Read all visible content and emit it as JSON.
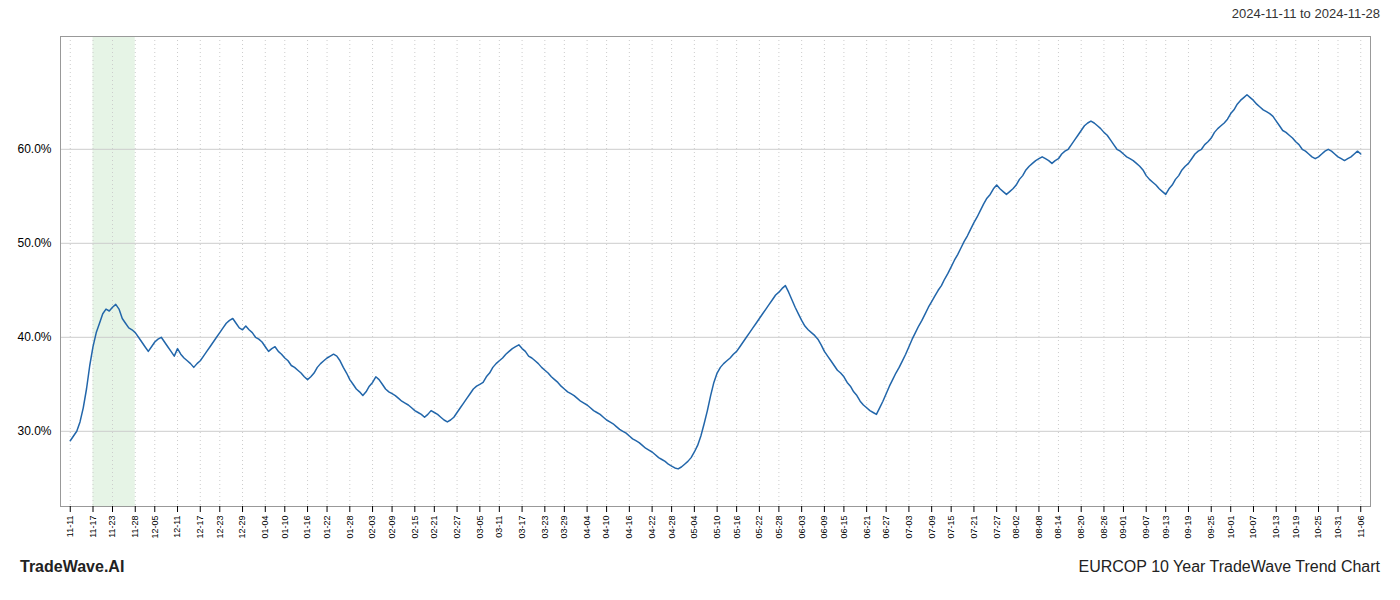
{
  "chart_data": {
    "type": "line",
    "title": "2024-11-11 to 2024-11-28",
    "footer": {
      "left": "TradeWave.AI",
      "right": "EURCOP 10 Year TradeWave Trend Chart"
    },
    "color": "#2266aa",
    "grid": true,
    "ylim": [
      0.22,
      0.72
    ],
    "yticks": [
      {
        "value": 0.3,
        "label": "30.0%"
      },
      {
        "value": 0.4,
        "label": "40.0%"
      },
      {
        "value": 0.5,
        "label": "50.0%"
      },
      {
        "value": 0.6,
        "label": "60.0%"
      }
    ],
    "shade": {
      "from": "11-17",
      "to": "11-28",
      "color": "#d6ecd6"
    },
    "categories": [
      "11-11",
      null,
      null,
      null,
      null,
      null,
      null,
      "11-17",
      null,
      null,
      null,
      null,
      null,
      "11-23",
      null,
      null,
      null,
      null,
      null,
      null,
      "11-28",
      null,
      null,
      null,
      null,
      null,
      "12-05",
      null,
      null,
      null,
      null,
      null,
      null,
      "12-11",
      null,
      null,
      null,
      null,
      null,
      null,
      "12-17",
      null,
      null,
      null,
      null,
      null,
      "12-23",
      null,
      null,
      null,
      null,
      null,
      null,
      "12-29",
      null,
      null,
      null,
      null,
      null,
      null,
      "01-04",
      null,
      null,
      null,
      null,
      null,
      "01-10",
      null,
      null,
      null,
      null,
      null,
      null,
      "01-16",
      null,
      null,
      null,
      null,
      null,
      "01-22",
      null,
      null,
      null,
      null,
      null,
      null,
      "01-28",
      null,
      null,
      null,
      null,
      null,
      null,
      "02-03",
      null,
      null,
      null,
      null,
      null,
      "02-09",
      null,
      null,
      null,
      null,
      null,
      null,
      "02-15",
      null,
      null,
      null,
      null,
      null,
      "02-21",
      null,
      null,
      null,
      null,
      null,
      null,
      "02-27",
      null,
      null,
      null,
      null,
      null,
      null,
      "03-05",
      null,
      null,
      null,
      null,
      null,
      "03-11",
      null,
      null,
      null,
      null,
      null,
      null,
      "03-17",
      null,
      null,
      null,
      null,
      null,
      null,
      "03-23",
      null,
      null,
      null,
      null,
      null,
      "03-29",
      null,
      null,
      null,
      null,
      null,
      null,
      "04-04",
      null,
      null,
      null,
      null,
      null,
      "04-10",
      null,
      null,
      null,
      null,
      null,
      null,
      "04-16",
      null,
      null,
      null,
      null,
      null,
      null,
      "04-22",
      null,
      null,
      null,
      null,
      null,
      "04-28",
      null,
      null,
      null,
      null,
      null,
      null,
      "05-04",
      null,
      null,
      null,
      null,
      null,
      null,
      "05-10",
      null,
      null,
      null,
      null,
      null,
      "05-16",
      null,
      null,
      null,
      null,
      null,
      null,
      "05-22",
      null,
      null,
      null,
      null,
      null,
      "05-28",
      null,
      null,
      null,
      null,
      null,
      null,
      "06-03",
      null,
      null,
      null,
      null,
      null,
      null,
      "06-09",
      null,
      null,
      null,
      null,
      null,
      "06-15",
      null,
      null,
      null,
      null,
      null,
      null,
      "06-21",
      null,
      null,
      null,
      null,
      null,
      "06-27",
      null,
      null,
      null,
      null,
      null,
      null,
      "07-03",
      null,
      null,
      null,
      null,
      null,
      null,
      "07-09",
      null,
      null,
      null,
      null,
      null,
      "07-15",
      null,
      null,
      null,
      null,
      null,
      null,
      "07-21",
      null,
      null,
      null,
      null,
      null,
      null,
      "07-27",
      null,
      null,
      null,
      null,
      null,
      "08-02",
      null,
      null,
      null,
      null,
      null,
      null,
      "08-08",
      null,
      null,
      null,
      null,
      null,
      "08-14",
      null,
      null,
      null,
      null,
      null,
      null,
      "08-20",
      null,
      null,
      null,
      null,
      null,
      null,
      "08-26",
      null,
      null,
      null,
      null,
      null,
      "09-01",
      null,
      null,
      null,
      null,
      null,
      null,
      "09-07",
      null,
      null,
      null,
      null,
      null,
      "09-13",
      null,
      null,
      null,
      null,
      null,
      null,
      "09-19",
      null,
      null,
      null,
      null,
      null,
      null,
      "09-25",
      null,
      null,
      null,
      null,
      null,
      "10-01",
      null,
      null,
      null,
      null,
      null,
      null,
      "10-07",
      null,
      null,
      null,
      null,
      null,
      null,
      "10-13",
      null,
      null,
      null,
      null,
      null,
      "10-19",
      null,
      null,
      null,
      null,
      null,
      null,
      "10-25",
      null,
      null,
      null,
      null,
      null,
      "10-31",
      null,
      null,
      null,
      null,
      null,
      null,
      "11-06"
    ],
    "values": [
      0.29,
      0.295,
      0.3,
      0.31,
      0.325,
      0.345,
      0.37,
      0.39,
      0.405,
      0.415,
      0.425,
      0.43,
      0.428,
      0.432,
      0.435,
      0.43,
      0.42,
      0.415,
      0.41,
      0.408,
      0.405,
      0.4,
      0.395,
      0.39,
      0.385,
      0.39,
      0.395,
      0.398,
      0.4,
      0.395,
      0.39,
      0.385,
      0.38,
      0.388,
      0.382,
      0.378,
      0.375,
      0.372,
      0.368,
      0.372,
      0.375,
      0.38,
      0.385,
      0.39,
      0.395,
      0.4,
      0.405,
      0.41,
      0.415,
      0.418,
      0.42,
      0.415,
      0.41,
      0.408,
      0.412,
      0.408,
      0.405,
      0.4,
      0.398,
      0.395,
      0.39,
      0.385,
      0.388,
      0.39,
      0.385,
      0.382,
      0.378,
      0.375,
      0.37,
      0.368,
      0.365,
      0.362,
      0.358,
      0.355,
      0.358,
      0.362,
      0.368,
      0.372,
      0.375,
      0.378,
      0.38,
      0.382,
      0.38,
      0.375,
      0.368,
      0.362,
      0.355,
      0.35,
      0.345,
      0.342,
      0.338,
      0.342,
      0.348,
      0.352,
      0.358,
      0.355,
      0.35,
      0.345,
      0.342,
      0.34,
      0.338,
      0.335,
      0.332,
      0.33,
      0.328,
      0.325,
      0.322,
      0.32,
      0.318,
      0.315,
      0.318,
      0.322,
      0.32,
      0.318,
      0.315,
      0.312,
      0.31,
      0.312,
      0.315,
      0.32,
      0.325,
      0.33,
      0.335,
      0.34,
      0.345,
      0.348,
      0.35,
      0.352,
      0.358,
      0.362,
      0.368,
      0.372,
      0.375,
      0.378,
      0.382,
      0.385,
      0.388,
      0.39,
      0.392,
      0.388,
      0.385,
      0.38,
      0.378,
      0.375,
      0.372,
      0.368,
      0.365,
      0.362,
      0.358,
      0.355,
      0.352,
      0.348,
      0.345,
      0.342,
      0.34,
      0.338,
      0.335,
      0.332,
      0.33,
      0.328,
      0.325,
      0.322,
      0.32,
      0.318,
      0.315,
      0.312,
      0.31,
      0.308,
      0.305,
      0.302,
      0.3,
      0.298,
      0.295,
      0.292,
      0.29,
      0.288,
      0.285,
      0.282,
      0.28,
      0.278,
      0.275,
      0.272,
      0.27,
      0.268,
      0.265,
      0.263,
      0.261,
      0.26,
      0.262,
      0.265,
      0.268,
      0.272,
      0.278,
      0.285,
      0.295,
      0.308,
      0.322,
      0.338,
      0.352,
      0.362,
      0.368,
      0.372,
      0.375,
      0.378,
      0.382,
      0.385,
      0.39,
      0.395,
      0.4,
      0.405,
      0.41,
      0.415,
      0.42,
      0.425,
      0.43,
      0.435,
      0.44,
      0.445,
      0.448,
      0.452,
      0.455,
      0.448,
      0.44,
      0.432,
      0.425,
      0.418,
      0.412,
      0.408,
      0.405,
      0.402,
      0.398,
      0.392,
      0.385,
      0.38,
      0.375,
      0.37,
      0.365,
      0.362,
      0.358,
      0.352,
      0.348,
      0.342,
      0.338,
      0.332,
      0.328,
      0.325,
      0.322,
      0.32,
      0.318,
      0.325,
      0.332,
      0.34,
      0.348,
      0.355,
      0.362,
      0.368,
      0.375,
      0.382,
      0.39,
      0.398,
      0.405,
      0.412,
      0.418,
      0.425,
      0.432,
      0.438,
      0.444,
      0.45,
      0.455,
      0.462,
      0.468,
      0.475,
      0.482,
      0.488,
      0.495,
      0.502,
      0.508,
      0.515,
      0.522,
      0.528,
      0.535,
      0.542,
      0.548,
      0.552,
      0.558,
      0.562,
      0.558,
      0.555,
      0.552,
      0.555,
      0.558,
      0.562,
      0.568,
      0.572,
      0.578,
      0.582,
      0.585,
      0.588,
      0.59,
      0.592,
      0.59,
      0.588,
      0.585,
      0.588,
      0.59,
      0.595,
      0.598,
      0.6,
      0.605,
      0.61,
      0.615,
      0.62,
      0.625,
      0.628,
      0.63,
      0.628,
      0.625,
      0.622,
      0.618,
      0.615,
      0.61,
      0.605,
      0.6,
      0.598,
      0.595,
      0.592,
      0.59,
      0.588,
      0.585,
      0.582,
      0.578,
      0.572,
      0.568,
      0.565,
      0.562,
      0.558,
      0.555,
      0.552,
      0.558,
      0.562,
      0.568,
      0.572,
      0.578,
      0.582,
      0.585,
      0.59,
      0.595,
      0.598,
      0.6,
      0.605,
      0.608,
      0.612,
      0.618,
      0.622,
      0.625,
      0.628,
      0.632,
      0.638,
      0.642,
      0.648,
      0.652,
      0.655,
      0.658,
      0.655,
      0.652,
      0.648,
      0.645,
      0.642,
      0.64,
      0.638,
      0.635,
      0.63,
      0.625,
      0.62,
      0.618,
      0.615,
      0.612,
      0.608,
      0.605,
      0.6,
      0.598,
      0.595,
      0.592,
      0.59,
      0.592,
      0.595,
      0.598,
      0.6,
      0.598,
      0.595,
      0.592,
      0.59,
      0.588,
      0.59,
      0.592,
      0.595,
      0.598,
      0.595
    ]
  }
}
